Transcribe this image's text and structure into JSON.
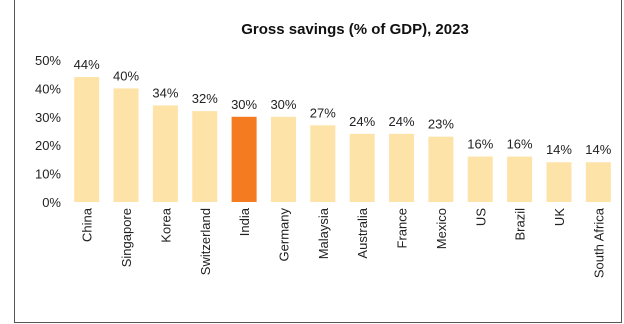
{
  "chart_data": {
    "type": "bar",
    "title": "Gross savings (% of GDP), 2023",
    "xlabel": "",
    "ylabel": "",
    "categories": [
      "China",
      "Singapore",
      "Korea",
      "Switzerland",
      "India",
      "Germany",
      "Malaysia",
      "Australia",
      "France",
      "Mexico",
      "US",
      "Brazil",
      "UK",
      "South Africa"
    ],
    "values": [
      44,
      40,
      34,
      32,
      30,
      30,
      27,
      24,
      24,
      23,
      16,
      16,
      14,
      14
    ],
    "data_labels": [
      "44%",
      "40%",
      "34%",
      "32%",
      "30%",
      "30%",
      "27%",
      "24%",
      "24%",
      "23%",
      "16%",
      "16%",
      "14%",
      "14%"
    ],
    "ylim": [
      0,
      50
    ],
    "yticks": [
      0,
      10,
      20,
      30,
      40,
      50
    ],
    "ytick_labels": [
      "0%",
      "10%",
      "20%",
      "30%",
      "40%",
      "50%"
    ],
    "grid": false,
    "legend": "none",
    "colors": {
      "default_bar": "#FDE3A7",
      "highlight_bar": "#F47B20",
      "highlight_category": "India"
    }
  }
}
